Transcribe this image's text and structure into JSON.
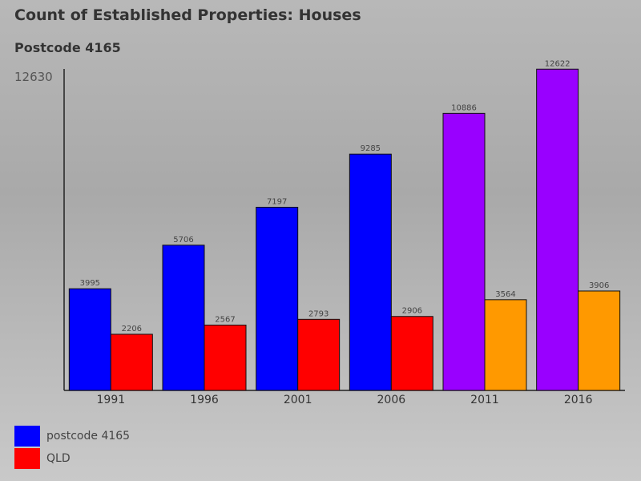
{
  "chart_data": {
    "type": "bar",
    "title": "Count of Established Properties: Houses",
    "subtitle": "Postcode 4165",
    "categories": [
      "1991",
      "1996",
      "2001",
      "2006",
      "2011",
      "2016"
    ],
    "series": [
      {
        "name": "postcode 4165",
        "values": [
          3995,
          5706,
          7197,
          9285,
          10886,
          12622
        ],
        "colors": [
          "#0000ff",
          "#0000ff",
          "#0000ff",
          "#0000ff",
          "#9900ff",
          "#9900ff"
        ]
      },
      {
        "name": "QLD",
        "values": [
          2206,
          2567,
          2793,
          2906,
          3564,
          3906
        ],
        "colors": [
          "#ff0000",
          "#ff0000",
          "#ff0000",
          "#ff0000",
          "#ff9900",
          "#ff9900"
        ]
      }
    ],
    "ylim": [
      0,
      12630
    ],
    "y_max_label": "12630",
    "xlabel": "",
    "ylabel": "",
    "legend": [
      {
        "label": "postcode 4165",
        "color": "#0000ff"
      },
      {
        "label": "QLD",
        "color": "#ff0000"
      }
    ]
  }
}
